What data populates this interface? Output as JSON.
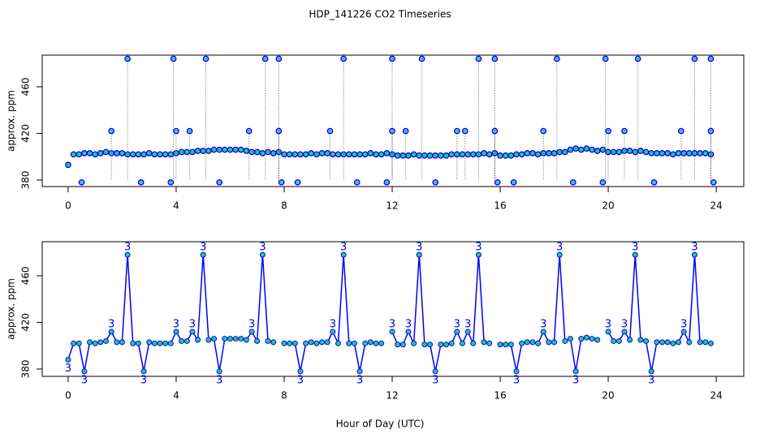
{
  "chart_data": [
    {
      "type": "scatter",
      "title": "HDP_141226  CO2 Timeseries",
      "ylabel": "approx. ppm",
      "xlim": [
        -0.96,
        25.02
      ],
      "xticks": [
        0,
        4,
        8,
        12,
        16,
        20,
        24
      ],
      "ylim": [
        374.4,
        487.1
      ],
      "yticks": [
        380,
        420,
        460
      ],
      "series": [
        {
          "color": "#0000ff",
          "fill": "#22cc88",
          "x": [
            0,
            0.2,
            0.4,
            0.6,
            0.8,
            1,
            1.2,
            1.4,
            1.6,
            1.8,
            2,
            2.2,
            2.4,
            2.6,
            2.8,
            3,
            3.2,
            3.4,
            3.6,
            3.8,
            4,
            4.2,
            4.4,
            4.6,
            4.8,
            5,
            5.2,
            5.4,
            5.6,
            5.8,
            6,
            6.2,
            6.4,
            6.6,
            6.8,
            7,
            7.2,
            7.4,
            7.6,
            7.8,
            8,
            8.2,
            8.4,
            8.6,
            8.8,
            9,
            9.2,
            9.4,
            9.6,
            9.8,
            10,
            10.2,
            10.4,
            10.6,
            10.8,
            11,
            11.2,
            11.4,
            11.6,
            11.8,
            12,
            12.2,
            12.4,
            12.6,
            12.8,
            13,
            13.2,
            13.4,
            13.6,
            13.8,
            14,
            14.2,
            14.4,
            14.6,
            14.8,
            15,
            15.2,
            15.4,
            15.6,
            15.8,
            16,
            16.2,
            16.4,
            16.6,
            16.8,
            17,
            17.2,
            17.4,
            17.6,
            17.8,
            18,
            18.2,
            18.4,
            18.6,
            18.8,
            19,
            19.2,
            19.4,
            19.6,
            19.8,
            20,
            20.2,
            20.4,
            20.6,
            20.8,
            21,
            21.2,
            21.4,
            21.6,
            21.8,
            22,
            22.2,
            22.4,
            22.6,
            22.8,
            23,
            23.2,
            23.4,
            23.6,
            23.8
          ],
          "values": [
            393,
            402,
            402,
            403,
            403,
            402,
            403,
            404,
            403,
            403,
            403,
            402,
            402,
            402,
            402,
            403,
            402,
            402,
            402,
            402,
            403,
            404,
            404,
            404,
            405,
            405,
            405,
            406,
            406,
            406,
            406,
            406,
            406,
            405,
            404,
            404,
            403,
            404,
            403,
            404,
            402,
            402,
            402,
            402,
            402,
            403,
            402,
            403,
            403,
            402,
            402,
            402,
            402,
            402,
            402,
            402,
            403,
            402,
            402,
            403,
            402,
            401,
            401,
            401,
            402,
            401,
            401,
            401,
            401,
            401,
            401,
            402,
            402,
            402,
            402,
            402,
            402,
            403,
            402,
            403,
            401,
            401,
            401,
            402,
            402,
            403,
            403,
            402,
            403,
            403,
            403,
            404,
            404,
            406,
            407,
            406,
            407,
            406,
            405,
            406,
            404,
            404,
            404,
            405,
            405,
            404,
            405,
            404,
            403,
            403,
            403,
            403,
            402,
            403,
            403,
            403,
            403,
            403,
            403,
            402
          ]
        },
        {
          "color": "#0000ff",
          "fill": "#4fb8e8",
          "x": [
            2.2,
            3.9,
            5.1,
            7.3,
            7.8,
            10.2,
            12.0,
            13.1,
            15.2,
            15.8,
            18.1,
            19.9,
            21.1,
            23.2,
            23.8,
            1.6,
            4.0,
            4.5,
            6.7,
            7.8,
            9.7,
            12.0,
            12.5,
            14.4,
            14.7,
            15.8,
            17.6,
            20.0,
            20.6,
            22.7,
            23.8,
            0.5,
            2.7,
            3.8,
            5.6,
            7.9,
            8.5,
            10.7,
            11.8,
            13.6,
            15.9,
            16.5,
            18.7,
            19.8,
            21.7,
            23.9
          ],
          "values": [
            484,
            484,
            484,
            484,
            484,
            484,
            484,
            484,
            484,
            484,
            484,
            484,
            484,
            484,
            484,
            422,
            422,
            422,
            422,
            422,
            422,
            422,
            422,
            422,
            422,
            422,
            422,
            422,
            422,
            422,
            422,
            378,
            378,
            378,
            378,
            378,
            378,
            378,
            378,
            378,
            378,
            378,
            378,
            378,
            378,
            378
          ]
        }
      ]
    },
    {
      "type": "line",
      "ylabel": "approx. ppm",
      "xlabel": "Hour of Day (UTC)",
      "xlim": [
        -0.96,
        25.02
      ],
      "xticks": [
        0,
        4,
        8,
        12,
        16,
        20,
        24
      ],
      "ylim": [
        373.7,
        489.2
      ],
      "yticks": [
        380,
        420,
        460
      ],
      "series": [
        {
          "color": "#0000ff",
          "fill": "#22cc88",
          "x": [
            0,
            0.2,
            0.4,
            0.6,
            0.8,
            1,
            1.2,
            1.4,
            1.6,
            1.8,
            2,
            2.2,
            2.4,
            2.6,
            2.8,
            3,
            3.2,
            3.4,
            3.6,
            3.8,
            4,
            4.2,
            4.4,
            4.6,
            4.8,
            5,
            5.2,
            5.4,
            5.6,
            5.8,
            6,
            6.2,
            6.4,
            6.6,
            6.8,
            7,
            7.2,
            7.4,
            7.6,
            7.8,
            8,
            8.2,
            8.4,
            8.6,
            8.8,
            9,
            9.2,
            9.4,
            9.6,
            9.8,
            10,
            10.2,
            10.4,
            10.6,
            10.8,
            11,
            11.2,
            11.4,
            11.6,
            11.8,
            12,
            12.2,
            12.4,
            12.6,
            12.8,
            13,
            13.2,
            13.4,
            13.6,
            13.8,
            14,
            14.2,
            14.4,
            14.6,
            14.8,
            15,
            15.2,
            15.4,
            15.6,
            15.8,
            16,
            16.2,
            16.4,
            16.6,
            16.8,
            17,
            17.2,
            17.4,
            17.6,
            17.8,
            18,
            18.2,
            18.4,
            18.6,
            18.8,
            19,
            19.2,
            19.4,
            19.6,
            19.8,
            20,
            20.2,
            20.4,
            20.6,
            20.8,
            21,
            21.2,
            21.4,
            21.6,
            21.8,
            22,
            22.2,
            22.4,
            22.6,
            22.8,
            23,
            23.2,
            23.4,
            23.6,
            23.8
          ],
          "values": [
            388,
            402,
            402,
            378,
            403,
            402,
            403,
            404,
            412,
            403,
            403,
            478,
            402,
            402,
            378,
            403,
            402,
            402,
            402,
            402,
            412,
            404,
            404,
            412,
            405,
            478,
            405,
            406,
            378,
            406,
            406,
            406,
            406,
            405,
            412,
            404,
            478,
            404,
            403,
            null,
            402,
            402,
            402,
            378,
            402,
            403,
            402,
            403,
            403,
            412,
            402,
            478,
            402,
            402,
            378,
            402,
            403,
            402,
            402,
            null,
            412,
            401,
            401,
            412,
            402,
            478,
            401,
            401,
            378,
            401,
            401,
            402,
            412,
            402,
            412,
            402,
            478,
            403,
            402,
            null,
            401,
            401,
            401,
            378,
            402,
            403,
            403,
            402,
            412,
            403,
            403,
            478,
            404,
            406,
            378,
            406,
            407,
            406,
            405,
            null,
            412,
            404,
            404,
            412,
            405,
            478,
            405,
            404,
            378,
            403,
            403,
            403,
            402,
            403,
            412,
            403,
            478,
            403,
            403,
            402
          ],
          "point_labels": [
            "3",
            null,
            null,
            "3",
            null,
            null,
            null,
            null,
            "3",
            null,
            null,
            "3",
            null,
            null,
            "3",
            null,
            null,
            null,
            null,
            null,
            "3",
            null,
            null,
            "3",
            null,
            "3",
            null,
            null,
            "3",
            null,
            null,
            null,
            null,
            null,
            "3",
            null,
            "3",
            null,
            null,
            null,
            null,
            null,
            null,
            "3",
            null,
            null,
            null,
            null,
            null,
            "3",
            null,
            "3",
            null,
            null,
            "3",
            null,
            null,
            null,
            null,
            null,
            "3",
            null,
            null,
            "3",
            null,
            "3",
            null,
            null,
            "3",
            null,
            null,
            null,
            "3",
            null,
            "3",
            null,
            "3",
            null,
            null,
            null,
            null,
            null,
            null,
            "3",
            null,
            null,
            null,
            null,
            "3",
            null,
            null,
            "3",
            null,
            null,
            "3",
            null,
            null,
            null,
            null,
            null,
            "3",
            null,
            null,
            "3",
            null,
            "3",
            null,
            null,
            "3",
            null,
            null,
            null,
            null,
            null,
            "3",
            null,
            "3",
            null,
            null,
            null
          ]
        }
      ]
    }
  ]
}
